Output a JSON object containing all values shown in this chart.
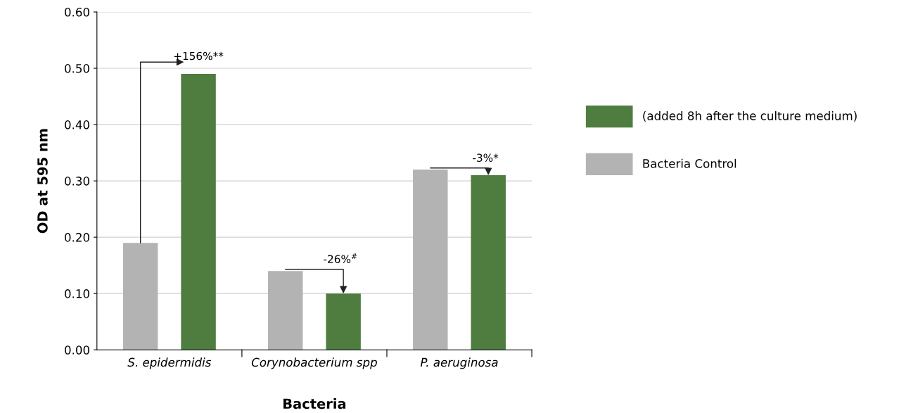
{
  "chart_data": {
    "type": "bar",
    "xlabel": "Bacteria",
    "ylabel": "OD at 595 nm",
    "categories": [
      "S. epidermidis",
      "Corynobacterium spp",
      "P. aeruginosa"
    ],
    "series": [
      {
        "name": "Bacteria Control",
        "color": "#b3b3b3",
        "values": [
          0.19,
          0.14,
          0.32
        ]
      },
      {
        "name": "(added 8h after the culture medium)",
        "color": "#4e7d3f",
        "values": [
          0.49,
          0.1,
          0.31
        ]
      }
    ],
    "ylim": [
      0,
      0.6
    ],
    "yticks": [
      {
        "value": 0,
        "label": "0.00"
      },
      {
        "value": 0.1,
        "label": "0.10"
      },
      {
        "value": 0.2,
        "label": "0.20"
      },
      {
        "value": 0.3,
        "label": "0.30"
      },
      {
        "value": 0.4,
        "label": "0.40"
      },
      {
        "value": 0.5,
        "label": "0.50"
      },
      {
        "value": 0.6,
        "label": "0.60"
      }
    ],
    "grid": "y",
    "legend": "right",
    "annotations": [
      "+156%**",
      "-26%$^{#}$",
      "-3%*"
    ]
  }
}
